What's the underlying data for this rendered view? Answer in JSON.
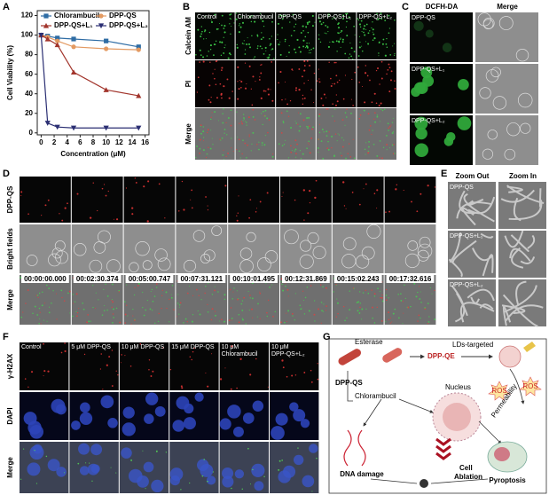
{
  "panel_labels": [
    "A",
    "B",
    "C",
    "D",
    "E",
    "F",
    "G"
  ],
  "chart_data": {
    "type": "line",
    "xlabel": "Concentration (μM)",
    "ylabel": "Cell Viability (%)",
    "x": [
      0,
      1,
      2.5,
      5,
      10,
      15
    ],
    "xlim": [
      -0.6,
      16.6
    ],
    "ylim": [
      -2,
      125
    ],
    "xticks": [
      0,
      2,
      4,
      6,
      8,
      10,
      12,
      14,
      16
    ],
    "yticks": [
      0,
      20,
      40,
      60,
      80,
      100,
      120
    ],
    "legend": "upper",
    "series": [
      {
        "name": "Chlorambucil",
        "color": "#2e6ca4",
        "marker": "square",
        "values": [
          100,
          99,
          97,
          96,
          94,
          88
        ]
      },
      {
        "name": "DPP-QS",
        "color": "#e39a62",
        "marker": "circle",
        "values": [
          100,
          98,
          94,
          88,
          86,
          85
        ]
      },
      {
        "name": "DPP-QS+L₁",
        "color": "#a2352c",
        "marker": "triangle-up",
        "values": [
          100,
          96,
          90,
          62,
          44,
          38
        ]
      },
      {
        "name": "DPP-QS+L₂",
        "color": "#2b2f73",
        "marker": "triangle-down",
        "values": [
          100,
          10,
          6,
          5,
          5,
          5
        ]
      }
    ]
  },
  "panel_b": {
    "columns": [
      "Control",
      "Chlorambucil",
      "DPP-QS",
      "DPP-QS+L₁",
      "DPP-QS+L₂"
    ],
    "rows": [
      "Calcein AM",
      "PI",
      "Merge"
    ]
  },
  "panel_c": {
    "columns": [
      "DCFH-DA",
      "Merge"
    ],
    "rows": [
      "DPP-QS",
      "DPP-QS+L₁",
      "DPP-QS+L₂"
    ]
  },
  "panel_d": {
    "rows": [
      "DPP-QS",
      "Bright fields",
      "Merge"
    ],
    "timestamps": [
      "00:00:00.000",
      "00:02:30.374",
      "00:05:00.747",
      "00:07:31.121",
      "00:10:01.495",
      "00:12:31.869",
      "00:15:02.243",
      "00:17:32.616"
    ]
  },
  "panel_e": {
    "columns": [
      "Zoom Out",
      "Zoom In"
    ],
    "rows": [
      "DPP-QS",
      "DPP-QS+L₁",
      "DPP-QS+L₂"
    ]
  },
  "panel_f": {
    "columns": [
      [
        "Control"
      ],
      [
        "5 μM DPP-QS"
      ],
      [
        "10 μM DPP-QS"
      ],
      [
        "15 μM DPP-QS"
      ],
      [
        "10 μM",
        "Chlorambucil"
      ],
      [
        "10 μM",
        "DPP-QS+L₂"
      ]
    ],
    "rows": [
      "γ-H2AX",
      "DAPI",
      "Merge"
    ]
  },
  "panel_g": {
    "esterase": "Esterase",
    "dpp_qe": "DPP-QE",
    "lds_targeted": "LDs-targeted",
    "dpp_qs": "DPP-QS",
    "chlorambucil": "Chlorambucil",
    "nucleus": "Nucleus",
    "ros": [
      "ROS",
      "ROS"
    ],
    "permeability": "Permeability",
    "dna_damage": "DNA damage",
    "cell_ablation": [
      "Cell",
      "Ablation"
    ],
    "pyroptosis": "Pyroptosis"
  }
}
